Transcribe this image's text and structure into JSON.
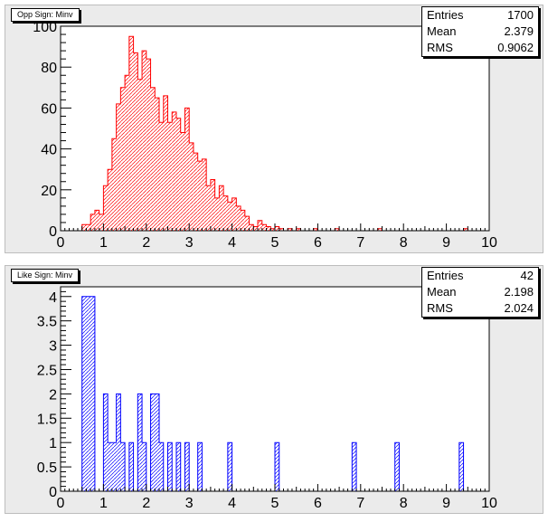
{
  "chart_data": [
    {
      "type": "bar",
      "title": "Opp Sign: Minv",
      "stats": [
        {
          "label": "Entries",
          "value": "1700"
        },
        {
          "label": "Mean",
          "value": "2.379"
        },
        {
          "label": "RMS",
          "value": "0.9062"
        }
      ],
      "xlim": [
        0,
        10
      ],
      "ylim": [
        0,
        100
      ],
      "x_ticks": [
        "0",
        "1",
        "2",
        "3",
        "4",
        "5",
        "6",
        "7",
        "8",
        "9",
        "10"
      ],
      "y_ticks": [
        "0",
        "20",
        "40",
        "60",
        "80",
        "100"
      ],
      "bin_width": 0.1,
      "colors": {
        "line": "#ff0000",
        "hatch": "#ff0000"
      },
      "bins": [
        {
          "x": 0.5,
          "y": 3
        },
        {
          "x": 0.6,
          "y": 3
        },
        {
          "x": 0.7,
          "y": 8
        },
        {
          "x": 0.8,
          "y": 10
        },
        {
          "x": 0.9,
          "y": 8
        },
        {
          "x": 1.0,
          "y": 22
        },
        {
          "x": 1.1,
          "y": 30
        },
        {
          "x": 1.2,
          "y": 45
        },
        {
          "x": 1.3,
          "y": 62
        },
        {
          "x": 1.4,
          "y": 70
        },
        {
          "x": 1.5,
          "y": 76
        },
        {
          "x": 1.6,
          "y": 95
        },
        {
          "x": 1.7,
          "y": 87
        },
        {
          "x": 1.8,
          "y": 74
        },
        {
          "x": 1.9,
          "y": 88
        },
        {
          "x": 2.0,
          "y": 84
        },
        {
          "x": 2.1,
          "y": 70
        },
        {
          "x": 2.2,
          "y": 65
        },
        {
          "x": 2.3,
          "y": 53
        },
        {
          "x": 2.4,
          "y": 66
        },
        {
          "x": 2.5,
          "y": 53
        },
        {
          "x": 2.6,
          "y": 58
        },
        {
          "x": 2.7,
          "y": 55
        },
        {
          "x": 2.8,
          "y": 48
        },
        {
          "x": 2.9,
          "y": 60
        },
        {
          "x": 3.0,
          "y": 43
        },
        {
          "x": 3.1,
          "y": 38
        },
        {
          "x": 3.2,
          "y": 34
        },
        {
          "x": 3.3,
          "y": 35
        },
        {
          "x": 3.4,
          "y": 22
        },
        {
          "x": 3.5,
          "y": 25
        },
        {
          "x": 3.6,
          "y": 16
        },
        {
          "x": 3.7,
          "y": 22
        },
        {
          "x": 3.8,
          "y": 17
        },
        {
          "x": 3.9,
          "y": 14
        },
        {
          "x": 4.0,
          "y": 16
        },
        {
          "x": 4.1,
          "y": 12
        },
        {
          "x": 4.2,
          "y": 10
        },
        {
          "x": 4.3,
          "y": 7
        },
        {
          "x": 4.4,
          "y": 3
        },
        {
          "x": 4.5,
          "y": 2
        },
        {
          "x": 4.6,
          "y": 5
        },
        {
          "x": 4.7,
          "y": 3
        },
        {
          "x": 4.8,
          "y": 2
        },
        {
          "x": 4.9,
          "y": 1
        },
        {
          "x": 5.0,
          "y": 2
        },
        {
          "x": 5.1,
          "y": 1
        },
        {
          "x": 5.3,
          "y": 1
        },
        {
          "x": 5.5,
          "y": 1
        },
        {
          "x": 5.9,
          "y": 1
        },
        {
          "x": 6.4,
          "y": 1
        },
        {
          "x": 7.4,
          "y": 1
        },
        {
          "x": 9.4,
          "y": 1
        }
      ]
    },
    {
      "type": "bar",
      "title": "Like Sign: Minv",
      "stats": [
        {
          "label": "Entries",
          "value": "42"
        },
        {
          "label": "Mean",
          "value": "2.198"
        },
        {
          "label": "RMS",
          "value": "2.024"
        }
      ],
      "xlim": [
        0,
        10
      ],
      "ylim": [
        0,
        4.2
      ],
      "x_ticks": [
        "0",
        "1",
        "2",
        "3",
        "4",
        "5",
        "6",
        "7",
        "8",
        "9",
        "10"
      ],
      "y_ticks": [
        "0",
        "0.5",
        "1",
        "1.5",
        "2",
        "2.5",
        "3",
        "3.5",
        "4"
      ],
      "y_tick_values": [
        0,
        0.5,
        1,
        1.5,
        2,
        2.5,
        3,
        3.5,
        4
      ],
      "bin_width": 0.1,
      "colors": {
        "line": "#0000ff",
        "hatch": "#0000ff"
      },
      "bins": [
        {
          "x": 0.5,
          "y": 4
        },
        {
          "x": 0.6,
          "y": 4
        },
        {
          "x": 0.7,
          "y": 4
        },
        {
          "x": 1.0,
          "y": 2
        },
        {
          "x": 1.1,
          "y": 1
        },
        {
          "x": 1.2,
          "y": 1
        },
        {
          "x": 1.3,
          "y": 2
        },
        {
          "x": 1.4,
          "y": 1
        },
        {
          "x": 1.6,
          "y": 1
        },
        {
          "x": 1.8,
          "y": 2
        },
        {
          "x": 1.9,
          "y": 1
        },
        {
          "x": 2.1,
          "y": 2
        },
        {
          "x": 2.2,
          "y": 2
        },
        {
          "x": 2.3,
          "y": 1
        },
        {
          "x": 2.5,
          "y": 1
        },
        {
          "x": 2.7,
          "y": 1
        },
        {
          "x": 2.9,
          "y": 1
        },
        {
          "x": 3.2,
          "y": 1
        },
        {
          "x": 3.9,
          "y": 1
        },
        {
          "x": 5.0,
          "y": 1
        },
        {
          "x": 6.8,
          "y": 1
        },
        {
          "x": 7.8,
          "y": 1
        },
        {
          "x": 9.3,
          "y": 1
        }
      ]
    }
  ]
}
